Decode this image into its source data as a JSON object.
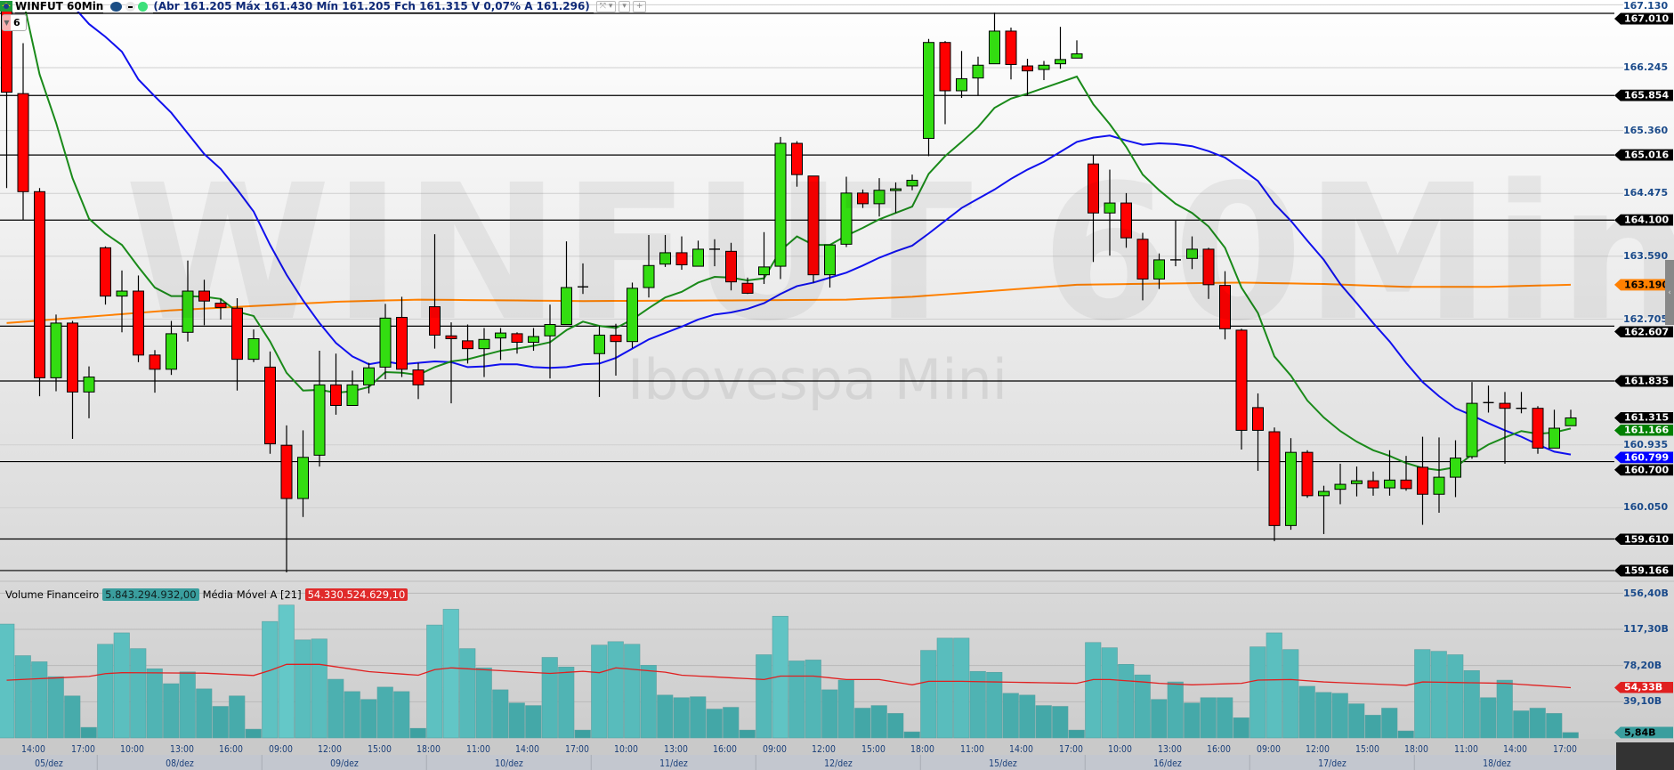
{
  "header": {
    "title": "WINFUT 60Min",
    "exchange_icon": "bmf-icon",
    "ohlc_text": "(Abr 161.205 Máx 161.430 Mín 161.205 Fch 161.315 V 0,07% A 161.296)",
    "badge_count": "6",
    "tool_buttons": [
      "⤧ ▾",
      "▾",
      "+"
    ]
  },
  "watermark": {
    "symbol": "WINFUT 60Min",
    "name": "Ibovespa Mini"
  },
  "colors": {
    "up": "#33dd11",
    "down": "#ff0000",
    "ma_short": "#1a8a1a",
    "ma_mid": "#1010ee",
    "ma_long": "#ff8000",
    "volume": "#4db5b5",
    "volume_ma": "#e02020"
  },
  "price_axis": {
    "ticks": [
      "167.130",
      "166.245",
      "165.360",
      "164.475",
      "163.590",
      "162.705",
      "160.935",
      "160.050"
    ],
    "levels": [
      "167.010",
      "165.854",
      "165.016",
      "164.100",
      "162.607",
      "161.835",
      "160.700",
      "159.610",
      "159.166"
    ],
    "tags": [
      {
        "label": "167.010",
        "bg": "#000000",
        "fg": "#ffffff"
      },
      {
        "label": "165.854",
        "bg": "#000000",
        "fg": "#ffffff"
      },
      {
        "label": "165.016",
        "bg": "#000000",
        "fg": "#ffffff"
      },
      {
        "label": "164.100",
        "bg": "#000000",
        "fg": "#ffffff"
      },
      {
        "label": "163.190",
        "bg": "#ff8000",
        "fg": "#000000"
      },
      {
        "label": "162.607",
        "bg": "#000000",
        "fg": "#ffffff"
      },
      {
        "label": "161.835",
        "bg": "#000000",
        "fg": "#ffffff"
      },
      {
        "label": "161.315",
        "bg": "#000000",
        "fg": "#ffffff"
      },
      {
        "label": "161.166",
        "bg": "#008000",
        "fg": "#ffffff"
      },
      {
        "label": "160.700",
        "bg": "#000000",
        "fg": "#ffffff"
      },
      {
        "label": "160.799",
        "bg": "#0000ff",
        "fg": "#ffffff"
      },
      {
        "label": "159.610",
        "bg": "#000000",
        "fg": "#ffffff"
      },
      {
        "label": "159.166",
        "bg": "#000000",
        "fg": "#ffffff"
      }
    ]
  },
  "volume_panel": {
    "title": "Volume Financeiro",
    "value": "5.843.294.932,00",
    "ma_label": "Média Móvel A [21]",
    "ma_value": "54.330.524.629,10",
    "ticks": [
      {
        "label": "156,40B",
        "v": 156.4
      },
      {
        "label": "117,30B",
        "v": 117.3
      },
      {
        "label": "78,20B",
        "v": 78.2
      },
      {
        "label": "39,10B",
        "v": 39.1
      }
    ],
    "tags": [
      {
        "label": "54,33B",
        "v": 54.33,
        "bg": "#e02020",
        "fg": "#ffffff"
      },
      {
        "label": "5,84B",
        "v": 5.84,
        "bg": "#3a9e9e",
        "fg": "#000000"
      }
    ]
  },
  "chart_data": {
    "type": "candlestick",
    "interval": "60Min",
    "ylim": [
      159.1,
      167.2
    ],
    "volume_unit": "B",
    "candles": [
      [
        167.15,
        167.2,
        164.55,
        165.9
      ],
      [
        165.88,
        166.59,
        164.1,
        164.5
      ],
      [
        164.5,
        164.55,
        161.62,
        161.88
      ],
      [
        161.88,
        162.77,
        161.69,
        162.65
      ],
      [
        162.65,
        162.68,
        161.02,
        161.68
      ],
      [
        161.68,
        162.04,
        161.31,
        161.89
      ],
      [
        163.71,
        163.73,
        162.91,
        163.03
      ],
      [
        163.03,
        163.39,
        162.52,
        163.1
      ],
      [
        163.1,
        163.32,
        162.1,
        162.2
      ],
      [
        162.2,
        162.27,
        161.67,
        162.0
      ],
      [
        162.0,
        162.68,
        161.92,
        162.5
      ],
      [
        162.52,
        163.53,
        162.39,
        163.1
      ],
      [
        163.1,
        163.26,
        162.62,
        162.96
      ],
      [
        162.93,
        162.99,
        162.7,
        162.87
      ],
      [
        162.86,
        163.0,
        161.7,
        162.14
      ],
      [
        162.14,
        162.56,
        162.1,
        162.43
      ],
      [
        162.03,
        162.25,
        160.81,
        160.95
      ],
      [
        160.93,
        161.21,
        159.14,
        160.18
      ],
      [
        160.18,
        161.14,
        159.92,
        160.76
      ],
      [
        160.79,
        162.26,
        160.63,
        161.78
      ],
      [
        161.78,
        162.22,
        161.36,
        161.49
      ],
      [
        161.49,
        161.98,
        161.49,
        161.78
      ],
      [
        161.78,
        162.09,
        161.66,
        162.02
      ],
      [
        162.03,
        162.92,
        161.86,
        162.72
      ],
      [
        162.73,
        163.02,
        161.89,
        162.0
      ],
      [
        161.99,
        162.09,
        161.58,
        161.78
      ],
      [
        162.88,
        163.9,
        162.29,
        162.48
      ],
      [
        162.47,
        162.66,
        161.52,
        162.43
      ],
      [
        162.4,
        162.63,
        162.08,
        162.29
      ],
      [
        162.29,
        162.58,
        161.89,
        162.42
      ],
      [
        162.44,
        162.58,
        162.13,
        162.51
      ],
      [
        162.5,
        162.52,
        162.22,
        162.38
      ],
      [
        162.38,
        162.58,
        162.26,
        162.46
      ],
      [
        162.47,
        162.91,
        161.87,
        162.63
      ],
      [
        162.63,
        163.8,
        162.63,
        163.15
      ],
      [
        163.16,
        163.49,
        163.06,
        163.16
      ],
      [
        162.22,
        162.61,
        161.61,
        162.48
      ],
      [
        162.48,
        162.64,
        161.91,
        162.39
      ],
      [
        162.39,
        163.22,
        162.3,
        163.14
      ],
      [
        163.15,
        163.89,
        163.01,
        163.46
      ],
      [
        163.48,
        163.89,
        163.44,
        163.64
      ],
      [
        163.64,
        163.87,
        163.4,
        163.47
      ],
      [
        163.45,
        163.81,
        163.45,
        163.69
      ],
      [
        163.69,
        163.83,
        163.45,
        163.69
      ],
      [
        163.66,
        163.78,
        163.11,
        163.23
      ],
      [
        163.21,
        163.29,
        163.06,
        163.07
      ],
      [
        163.33,
        163.93,
        163.2,
        163.44
      ],
      [
        163.45,
        165.27,
        163.27,
        165.18
      ],
      [
        165.18,
        165.21,
        164.57,
        164.74
      ],
      [
        164.72,
        164.72,
        163.22,
        163.33
      ],
      [
        163.33,
        163.75,
        163.15,
        163.75
      ],
      [
        163.76,
        164.71,
        163.72,
        164.48
      ],
      [
        164.48,
        164.53,
        164.27,
        164.33
      ],
      [
        164.33,
        164.69,
        164.15,
        164.52
      ],
      [
        164.52,
        164.63,
        164.2,
        164.54
      ],
      [
        164.58,
        164.74,
        164.52,
        164.66
      ],
      [
        165.25,
        166.65,
        165.0,
        166.6
      ],
      [
        166.6,
        166.62,
        165.45,
        165.92
      ],
      [
        165.92,
        166.48,
        165.82,
        166.09
      ],
      [
        166.1,
        166.4,
        165.85,
        166.28
      ],
      [
        166.3,
        167.02,
        166.3,
        166.76
      ],
      [
        166.76,
        166.81,
        166.08,
        166.29
      ],
      [
        166.27,
        166.37,
        165.85,
        166.2
      ],
      [
        166.22,
        166.34,
        166.07,
        166.28
      ],
      [
        166.3,
        166.82,
        166.23,
        166.36
      ],
      [
        166.38,
        166.63,
        166.38,
        166.44
      ],
      [
        164.89,
        165.02,
        163.51,
        164.2
      ],
      [
        164.2,
        164.81,
        163.6,
        164.34
      ],
      [
        164.34,
        164.48,
        163.71,
        163.85
      ],
      [
        163.83,
        163.92,
        162.97,
        163.27
      ],
      [
        163.27,
        163.63,
        163.13,
        163.54
      ],
      [
        163.54,
        164.09,
        163.45,
        163.54
      ],
      [
        163.56,
        163.87,
        163.41,
        163.69
      ],
      [
        163.69,
        163.71,
        162.99,
        163.19
      ],
      [
        163.18,
        163.38,
        162.42,
        162.57
      ],
      [
        162.55,
        162.57,
        160.87,
        161.14
      ],
      [
        161.46,
        161.66,
        160.57,
        161.14
      ],
      [
        161.12,
        161.18,
        159.58,
        159.8
      ],
      [
        159.8,
        161.03,
        159.74,
        160.83
      ],
      [
        160.83,
        160.86,
        160.19,
        160.22
      ],
      [
        160.22,
        160.36,
        159.68,
        160.28
      ],
      [
        160.31,
        160.67,
        160.1,
        160.38
      ],
      [
        160.39,
        160.63,
        160.21,
        160.43
      ],
      [
        160.43,
        160.56,
        160.22,
        160.33
      ],
      [
        160.33,
        160.86,
        160.22,
        160.44
      ],
      [
        160.44,
        160.78,
        160.29,
        160.32
      ],
      [
        160.62,
        161.05,
        159.81,
        160.24
      ],
      [
        160.24,
        161.04,
        159.98,
        160.48
      ],
      [
        160.48,
        161.0,
        160.2,
        160.75
      ],
      [
        160.77,
        161.82,
        160.74,
        161.52
      ],
      [
        161.53,
        161.77,
        161.39,
        161.53
      ],
      [
        161.52,
        161.68,
        160.67,
        161.45
      ],
      [
        161.45,
        161.68,
        161.38,
        161.45
      ],
      [
        161.45,
        161.48,
        160.81,
        160.89
      ],
      [
        160.89,
        161.43,
        160.89,
        161.17
      ],
      [
        161.205,
        161.43,
        161.205,
        161.315
      ]
    ],
    "ma_short": [
      167.6,
      167.2,
      166.15,
      165.47,
      164.69,
      164.12,
      163.91,
      163.75,
      163.44,
      163.15,
      163.03,
      163.03,
      163.02,
      162.99,
      162.81,
      162.75,
      162.39,
      161.95,
      161.7,
      161.71,
      161.67,
      161.69,
      161.75,
      161.96,
      161.95,
      161.92,
      162.03,
      162.11,
      162.14,
      162.2,
      162.26,
      162.29,
      162.33,
      162.38,
      162.55,
      162.67,
      162.61,
      162.58,
      162.7,
      162.86,
      163.01,
      163.09,
      163.22,
      163.3,
      163.29,
      163.25,
      163.28,
      163.67,
      163.87,
      163.75,
      163.75,
      163.88,
      163.99,
      164.11,
      164.2,
      164.29,
      164.75,
      165.0,
      165.2,
      165.41,
      165.68,
      165.81,
      165.88,
      165.96,
      166.04,
      166.12,
      165.73,
      165.45,
      165.13,
      164.74,
      164.52,
      164.33,
      164.2,
      164.01,
      163.71,
      163.15,
      162.79,
      162.18,
      161.91,
      161.56,
      161.32,
      161.13,
      160.98,
      160.86,
      160.78,
      160.68,
      160.61,
      160.58,
      160.62,
      160.8,
      160.94,
      161.04,
      161.13,
      161.09,
      161.11,
      161.166
    ],
    "ma_mid": [
      168.1,
      167.8,
      167.5,
      167.2,
      167.12,
      166.86,
      166.68,
      166.47,
      166.08,
      165.84,
      165.61,
      165.32,
      165.03,
      164.82,
      164.53,
      164.22,
      163.75,
      163.33,
      162.97,
      162.65,
      162.37,
      162.18,
      162.07,
      162.11,
      162.07,
      162.09,
      162.11,
      162.1,
      162.03,
      162.04,
      162.07,
      162.07,
      162.03,
      162.02,
      162.03,
      162.07,
      162.08,
      162.16,
      162.29,
      162.42,
      162.51,
      162.6,
      162.7,
      162.77,
      162.8,
      162.85,
      162.93,
      163.06,
      163.17,
      163.22,
      163.29,
      163.36,
      163.46,
      163.57,
      163.66,
      163.74,
      163.91,
      164.09,
      164.27,
      164.4,
      164.53,
      164.68,
      164.81,
      164.92,
      165.06,
      165.2,
      165.26,
      165.29,
      165.22,
      165.16,
      165.18,
      165.17,
      165.14,
      165.07,
      164.98,
      164.82,
      164.65,
      164.33,
      164.09,
      163.81,
      163.54,
      163.2,
      162.93,
      162.65,
      162.39,
      162.09,
      161.82,
      161.62,
      161.45,
      161.35,
      161.24,
      161.14,
      161.05,
      160.94,
      160.84,
      160.799
    ],
    "ma_long_points": [
      [
        0,
        162.65
      ],
      [
        10,
        162.83
      ],
      [
        20,
        162.95
      ],
      [
        25,
        162.98
      ],
      [
        35,
        162.96
      ],
      [
        45,
        162.97
      ],
      [
        51,
        162.98
      ],
      [
        55,
        163.02
      ],
      [
        65,
        163.19
      ],
      [
        75,
        163.22
      ],
      [
        80,
        163.2
      ],
      [
        85,
        163.16
      ],
      [
        90,
        163.16
      ],
      [
        95,
        163.19
      ]
    ],
    "volume": [
      123.0,
      88.9,
      82.3,
      66.2,
      45.4,
      11.4,
      101.2,
      113.5,
      96.5,
      74.7,
      58.6,
      71.3,
      53.0,
      34.1,
      45.4,
      9.5,
      125.8,
      143.5,
      105.9,
      106.9,
      63.4,
      50.1,
      41.6,
      54.9,
      50.1,
      10.4,
      122.0,
      139.0,
      96.5,
      75.7,
      52.0,
      37.8,
      35.0,
      87.0,
      76.6,
      8.5,
      100.3,
      104.0,
      101.2,
      78.5,
      46.3,
      43.5,
      44.5,
      31.2,
      33.1,
      8.5,
      89.9,
      131.5,
      83.2,
      84.2,
      52.0,
      62.4,
      32.2,
      35.0,
      26.5,
      6.6,
      94.6,
      107.8,
      107.8,
      71.9,
      70.9,
      48.2,
      46.3,
      35.0,
      34.1,
      8.5,
      103.1,
      97.4,
      79.5,
      68.1,
      41.6,
      60.5,
      37.8,
      43.5,
      43.5,
      21.8,
      98.4,
      113.5,
      95.5,
      55.8,
      49.2,
      48.2,
      36.9,
      24.6,
      32.2,
      7.6,
      95.5,
      93.6,
      89.9,
      72.8,
      43.5,
      62.4,
      29.3,
      32.2,
      26.5,
      5.84
    ],
    "volume_ma_points": [
      [
        0,
        62.4
      ],
      [
        5,
        66.5
      ],
      [
        6,
        69.5
      ],
      [
        7,
        70.5
      ],
      [
        12,
        70
      ],
      [
        15,
        67.5
      ],
      [
        16,
        73
      ],
      [
        17,
        79.5
      ],
      [
        19,
        79.5
      ],
      [
        22,
        71.6
      ],
      [
        25,
        67.8
      ],
      [
        26,
        73.8
      ],
      [
        27,
        75.7
      ],
      [
        33,
        69.7
      ],
      [
        35,
        72
      ],
      [
        36,
        70.5
      ],
      [
        37,
        75.7
      ],
      [
        40,
        71
      ],
      [
        41,
        67.8
      ],
      [
        46,
        63.1
      ],
      [
        47,
        66.8
      ],
      [
        49,
        66.8
      ],
      [
        51,
        63.1
      ],
      [
        53,
        63.1
      ],
      [
        55,
        57.4
      ],
      [
        56,
        61.2
      ],
      [
        58,
        61.2
      ],
      [
        60,
        60.5
      ],
      [
        65,
        59
      ],
      [
        66,
        63.1
      ],
      [
        67,
        63.1
      ],
      [
        69,
        60.5
      ],
      [
        70,
        59
      ],
      [
        72,
        57.4
      ],
      [
        75,
        59
      ],
      [
        76,
        62.5
      ],
      [
        78,
        63.1
      ],
      [
        80,
        60.5
      ],
      [
        85,
        56.8
      ],
      [
        86,
        60.5
      ],
      [
        91,
        59
      ],
      [
        95,
        54.33
      ]
    ],
    "x_ticks": [
      {
        "i": 1,
        "label": "14:00"
      },
      {
        "i": 4,
        "label": "17:00"
      },
      {
        "i": 7,
        "label": "10:00"
      },
      {
        "i": 10,
        "label": "13:00"
      },
      {
        "i": 13,
        "label": "16:00"
      },
      {
        "i": 16,
        "label": "09:00"
      },
      {
        "i": 19,
        "label": "12:00"
      },
      {
        "i": 22,
        "label": "15:00"
      },
      {
        "i": 25,
        "label": "18:00"
      },
      {
        "i": 28,
        "label": "11:00"
      },
      {
        "i": 31,
        "label": "14:00"
      },
      {
        "i": 34,
        "label": "17:00"
      },
      {
        "i": 37,
        "label": "10:00"
      },
      {
        "i": 40,
        "label": "13:00"
      },
      {
        "i": 43,
        "label": "16:00"
      },
      {
        "i": 46,
        "label": "09:00"
      },
      {
        "i": 49,
        "label": "12:00"
      },
      {
        "i": 52,
        "label": "15:00"
      },
      {
        "i": 55,
        "label": "18:00"
      },
      {
        "i": 58,
        "label": "11:00"
      },
      {
        "i": 61,
        "label": "14:00"
      },
      {
        "i": 64,
        "label": "17:00"
      },
      {
        "i": 67,
        "label": "10:00"
      },
      {
        "i": 70,
        "label": "13:00"
      },
      {
        "i": 73,
        "label": "16:00"
      },
      {
        "i": 76,
        "label": "09:00"
      },
      {
        "i": 79,
        "label": "12:00"
      },
      {
        "i": 82,
        "label": "15:00"
      },
      {
        "i": 85,
        "label": "18:00"
      },
      {
        "i": 88,
        "label": "11:00"
      },
      {
        "i": 91,
        "label": "14:00"
      },
      {
        "i": 94,
        "label": "17:00"
      }
    ],
    "days": [
      {
        "label": "05/dez",
        "start": 0,
        "end": 5
      },
      {
        "label": "08/dez",
        "start": 6,
        "end": 15
      },
      {
        "label": "09/dez",
        "start": 16,
        "end": 25
      },
      {
        "label": "10/dez",
        "start": 26,
        "end": 35
      },
      {
        "label": "11/dez",
        "start": 36,
        "end": 45
      },
      {
        "label": "12/dez",
        "start": 46,
        "end": 55
      },
      {
        "label": "15/dez",
        "start": 56,
        "end": 65
      },
      {
        "label": "16/dez",
        "start": 66,
        "end": 75
      },
      {
        "label": "17/dez",
        "start": 76,
        "end": 85
      },
      {
        "label": "18/dez",
        "start": 86,
        "end": 95
      }
    ]
  }
}
